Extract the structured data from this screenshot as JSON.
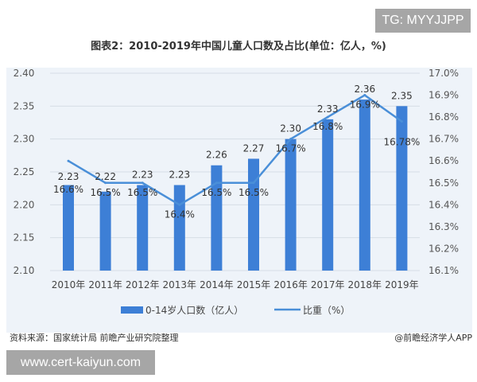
{
  "watermark_top": "TG: MYYJJPP",
  "watermark_bottom": "www.cert-kaiyun.com",
  "source": "资料来源：国家统计局 前瞻产业研究院整理",
  "brand": "@前瞻经济学人APP",
  "chart_data": {
    "type": "bar+line",
    "title": "图表2：2010-2019年中国儿童人口数及占比(单位：亿人，%)",
    "categories": [
      "2010年",
      "2011年",
      "2012年",
      "2013年",
      "2014年",
      "2015年",
      "2016年",
      "2017年",
      "2018年",
      "2019年"
    ],
    "series": [
      {
        "name": "0-14岁人口数（亿人）",
        "type": "bar",
        "axis": "left",
        "color": "#3d7fd6",
        "values": [
          2.23,
          2.22,
          2.23,
          2.23,
          2.26,
          2.27,
          2.3,
          2.33,
          2.36,
          2.35
        ],
        "labels": [
          "2.23",
          "2.22",
          "2.23",
          "2.23",
          "2.26",
          "2.27",
          "2.30",
          "2.33",
          "2.36",
          "2.35"
        ]
      },
      {
        "name": "比重（%）",
        "type": "line",
        "axis": "right",
        "color": "#4a8fd8",
        "values": [
          16.6,
          16.5,
          16.5,
          16.4,
          16.5,
          16.5,
          16.7,
          16.8,
          16.9,
          16.78
        ],
        "labels": [
          "16.6%",
          "16.5%",
          "16.5%",
          "16.4%",
          "16.5%",
          "16.5%",
          "16.7%",
          "16.8%",
          "16.9%",
          "16.78%"
        ]
      }
    ],
    "y_left": {
      "range": [
        2.1,
        2.4
      ],
      "ticks": [
        "2.10",
        "2.15",
        "2.20",
        "2.25",
        "2.30",
        "2.35",
        "2.40"
      ]
    },
    "y_right": {
      "range": [
        16.1,
        17.0
      ],
      "ticks": [
        "16.1%",
        "16.2%",
        "16.3%",
        "16.4%",
        "16.5%",
        "16.6%",
        "16.7%",
        "16.8%",
        "16.9%",
        "17.0%"
      ]
    },
    "grid": true,
    "legend": "bottom"
  }
}
